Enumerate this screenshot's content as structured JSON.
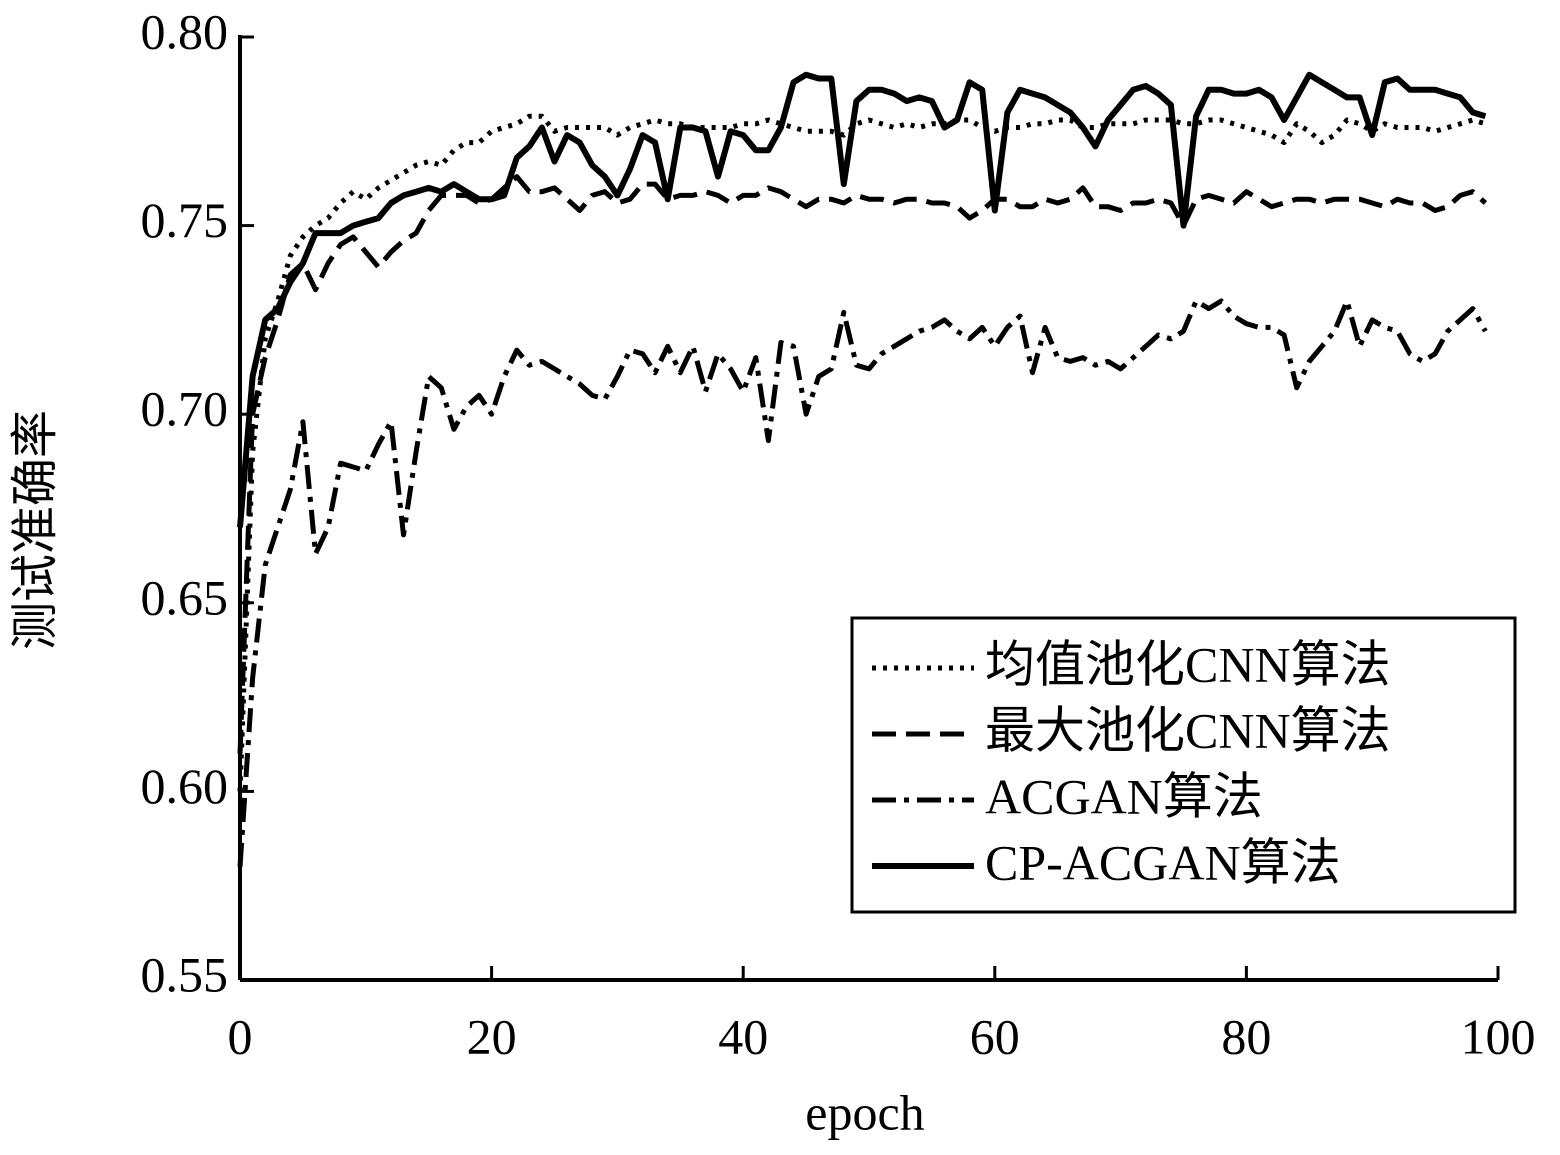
{
  "chart_data": {
    "type": "line",
    "ylabel": "测试准确率",
    "xlabel": "epoch",
    "x": [
      0,
      1,
      2,
      3,
      4,
      5,
      6,
      7,
      8,
      9,
      10,
      11,
      12,
      13,
      14,
      15,
      16,
      17,
      18,
      19,
      20,
      21,
      22,
      23,
      24,
      25,
      26,
      27,
      28,
      29,
      30,
      31,
      32,
      33,
      34,
      35,
      36,
      37,
      38,
      39,
      40,
      41,
      42,
      43,
      44,
      45,
      46,
      47,
      48,
      49,
      50,
      51,
      52,
      53,
      54,
      55,
      56,
      57,
      58,
      59,
      60,
      61,
      62,
      63,
      64,
      65,
      66,
      67,
      68,
      69,
      70,
      71,
      72,
      73,
      74,
      75,
      76,
      77,
      78,
      79,
      80,
      81,
      82,
      83,
      84,
      85,
      86,
      87,
      88,
      89,
      90,
      91,
      92,
      93,
      94,
      95,
      96,
      97,
      98,
      99
    ],
    "xlim": [
      0,
      100
    ],
    "xticks": [
      0,
      20,
      40,
      60,
      80,
      100
    ],
    "ylim": [
      0.55,
      0.8
    ],
    "yticks": [
      0.55,
      {
        "value": 0.6,
        "label": "0.60"
      },
      0.65,
      {
        "value": 0.7,
        "label": "0.70"
      },
      0.75,
      {
        "value": 0.8,
        "label": "0.80"
      }
    ],
    "legend": "lower right",
    "series": [
      {
        "name": "均值池化CNN算法",
        "color": "#000000",
        "linestyle": "dotted",
        "values": [
          0.6,
          0.69,
          0.72,
          0.73,
          0.742,
          0.747,
          0.75,
          0.752,
          0.756,
          0.759,
          0.757,
          0.76,
          0.762,
          0.764,
          0.766,
          0.767,
          0.766,
          0.77,
          0.772,
          0.772,
          0.775,
          0.776,
          0.777,
          0.779,
          0.779,
          0.775,
          0.776,
          0.776,
          0.776,
          0.776,
          0.774,
          0.776,
          0.777,
          0.778,
          0.777,
          0.777,
          0.776,
          0.776,
          0.776,
          0.776,
          0.777,
          0.777,
          0.778,
          0.777,
          0.776,
          0.775,
          0.775,
          0.775,
          0.774,
          0.777,
          0.778,
          0.777,
          0.776,
          0.777,
          0.776,
          0.777,
          0.777,
          0.778,
          0.778,
          0.776,
          0.775,
          0.776,
          0.776,
          0.777,
          0.777,
          0.778,
          0.778,
          0.776,
          0.776,
          0.777,
          0.777,
          0.777,
          0.778,
          0.778,
          0.778,
          0.777,
          0.777,
          0.778,
          0.778,
          0.777,
          0.776,
          0.775,
          0.774,
          0.772,
          0.777,
          0.775,
          0.772,
          0.774,
          0.778,
          0.777,
          0.775,
          0.777,
          0.776,
          0.776,
          0.776,
          0.775,
          0.776,
          0.777,
          0.778,
          0.777
        ]
      },
      {
        "name": "最大池化CNN算法",
        "color": "#000000",
        "linestyle": "dashed",
        "values": [
          0.61,
          0.7,
          0.715,
          0.725,
          0.737,
          0.74,
          0.733,
          0.74,
          0.745,
          0.747,
          0.743,
          0.739,
          0.743,
          0.746,
          0.748,
          0.754,
          0.758,
          0.758,
          0.758,
          0.756,
          0.757,
          0.76,
          0.763,
          0.759,
          0.759,
          0.76,
          0.757,
          0.754,
          0.758,
          0.759,
          0.756,
          0.757,
          0.761,
          0.761,
          0.757,
          0.758,
          0.758,
          0.759,
          0.758,
          0.756,
          0.758,
          0.758,
          0.76,
          0.759,
          0.757,
          0.755,
          0.757,
          0.757,
          0.756,
          0.758,
          0.757,
          0.757,
          0.756,
          0.757,
          0.757,
          0.756,
          0.756,
          0.755,
          0.752,
          0.754,
          0.757,
          0.757,
          0.755,
          0.755,
          0.757,
          0.756,
          0.757,
          0.76,
          0.755,
          0.755,
          0.754,
          0.756,
          0.756,
          0.757,
          0.756,
          0.75,
          0.757,
          0.758,
          0.757,
          0.756,
          0.759,
          0.757,
          0.755,
          0.756,
          0.757,
          0.757,
          0.756,
          0.757,
          0.757,
          0.757,
          0.756,
          0.755,
          0.757,
          0.756,
          0.756,
          0.754,
          0.755,
          0.758,
          0.759,
          0.756
        ]
      },
      {
        "name": "ACGAN算法",
        "color": "#000000",
        "linestyle": "dashdot",
        "values": [
          0.58,
          0.63,
          0.66,
          0.67,
          0.68,
          0.698,
          0.663,
          0.67,
          0.687,
          0.686,
          0.685,
          0.692,
          0.698,
          0.668,
          0.69,
          0.71,
          0.707,
          0.696,
          0.702,
          0.705,
          0.7,
          0.71,
          0.717,
          0.713,
          0.714,
          0.712,
          0.71,
          0.708,
          0.705,
          0.704,
          0.71,
          0.717,
          0.716,
          0.711,
          0.718,
          0.711,
          0.718,
          0.706,
          0.716,
          0.712,
          0.706,
          0.715,
          0.693,
          0.719,
          0.718,
          0.7,
          0.71,
          0.712,
          0.727,
          0.713,
          0.712,
          0.716,
          0.718,
          0.72,
          0.722,
          0.723,
          0.725,
          0.722,
          0.72,
          0.723,
          0.718,
          0.723,
          0.726,
          0.711,
          0.723,
          0.715,
          0.714,
          0.715,
          0.713,
          0.714,
          0.712,
          0.715,
          0.718,
          0.721,
          0.72,
          0.722,
          0.73,
          0.728,
          0.73,
          0.726,
          0.724,
          0.723,
          0.723,
          0.721,
          0.707,
          0.714,
          0.718,
          0.722,
          0.73,
          0.718,
          0.725,
          0.723,
          0.722,
          0.716,
          0.714,
          0.716,
          0.722,
          0.725,
          0.728,
          0.722
        ]
      },
      {
        "name": "CP-ACGAN算法",
        "color": "#000000",
        "linestyle": "solid",
        "values": [
          0.67,
          0.71,
          0.725,
          0.728,
          0.735,
          0.74,
          0.748,
          0.748,
          0.748,
          0.75,
          0.751,
          0.752,
          0.756,
          0.758,
          0.759,
          0.76,
          0.759,
          0.761,
          0.759,
          0.757,
          0.757,
          0.758,
          0.768,
          0.771,
          0.776,
          0.767,
          0.774,
          0.772,
          0.766,
          0.763,
          0.758,
          0.765,
          0.774,
          0.772,
          0.757,
          0.776,
          0.776,
          0.775,
          0.763,
          0.775,
          0.774,
          0.77,
          0.77,
          0.776,
          0.788,
          0.79,
          0.789,
          0.789,
          0.761,
          0.783,
          0.786,
          0.786,
          0.785,
          0.783,
          0.784,
          0.783,
          0.776,
          0.778,
          0.788,
          0.786,
          0.754,
          0.78,
          0.786,
          0.785,
          0.784,
          0.782,
          0.78,
          0.776,
          0.771,
          0.778,
          0.782,
          0.786,
          0.787,
          0.785,
          0.782,
          0.75,
          0.779,
          0.786,
          0.786,
          0.785,
          0.785,
          0.786,
          0.784,
          0.778,
          0.784,
          0.79,
          0.788,
          0.786,
          0.784,
          0.784,
          0.774,
          0.788,
          0.789,
          0.786,
          0.786,
          0.786,
          0.785,
          0.784,
          0.78,
          0.779
        ]
      }
    ]
  }
}
